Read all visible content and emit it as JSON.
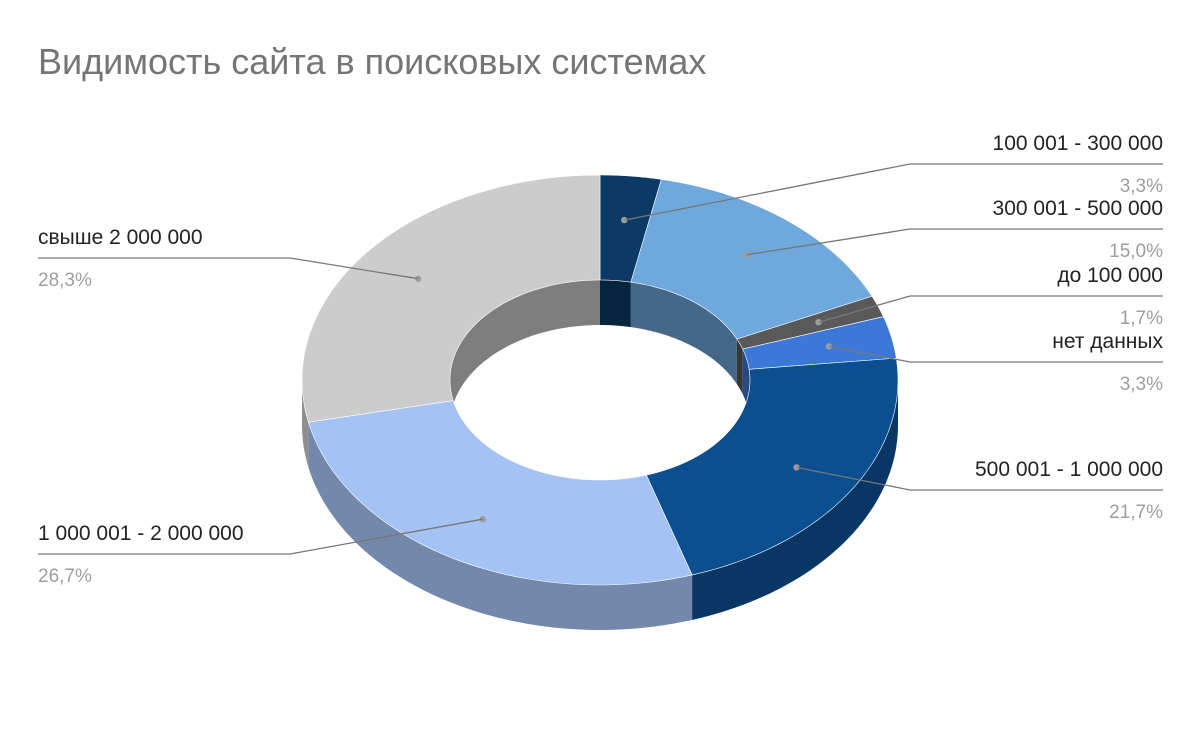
{
  "chart_data": {
    "type": "pie",
    "variant": "3d-donut",
    "title": "Видимость сайта в поисковых системах",
    "series": [
      {
        "name": "",
        "slices": [
          {
            "label": "100 001 - 300 000",
            "value": 3.3,
            "display": "3,3%",
            "color": "#0b3a66"
          },
          {
            "label": "300 001 - 500 000",
            "value": 15.0,
            "display": "15,0%",
            "color": "#6fa8dc"
          },
          {
            "label": "до 100 000",
            "value": 1.7,
            "display": "1,7%",
            "color": "#595959"
          },
          {
            "label": "нет данных",
            "value": 3.3,
            "display": "3,3%",
            "color": "#3c78d8"
          },
          {
            "label": "500 001 - 1 000 000",
            "value": 21.7,
            "display": "21,7%",
            "color": "#0b4f91"
          },
          {
            "label": "1 000 001 - 2 000 000",
            "value": 26.7,
            "display": "26,7%",
            "color": "#a4c2f4"
          },
          {
            "label": "свыше 2 000 000",
            "value": 28.3,
            "display": "28,3%",
            "color": "#cccccc"
          }
        ]
      }
    ],
    "legend": "none",
    "data_labels": "outside-with-leader-lines"
  }
}
